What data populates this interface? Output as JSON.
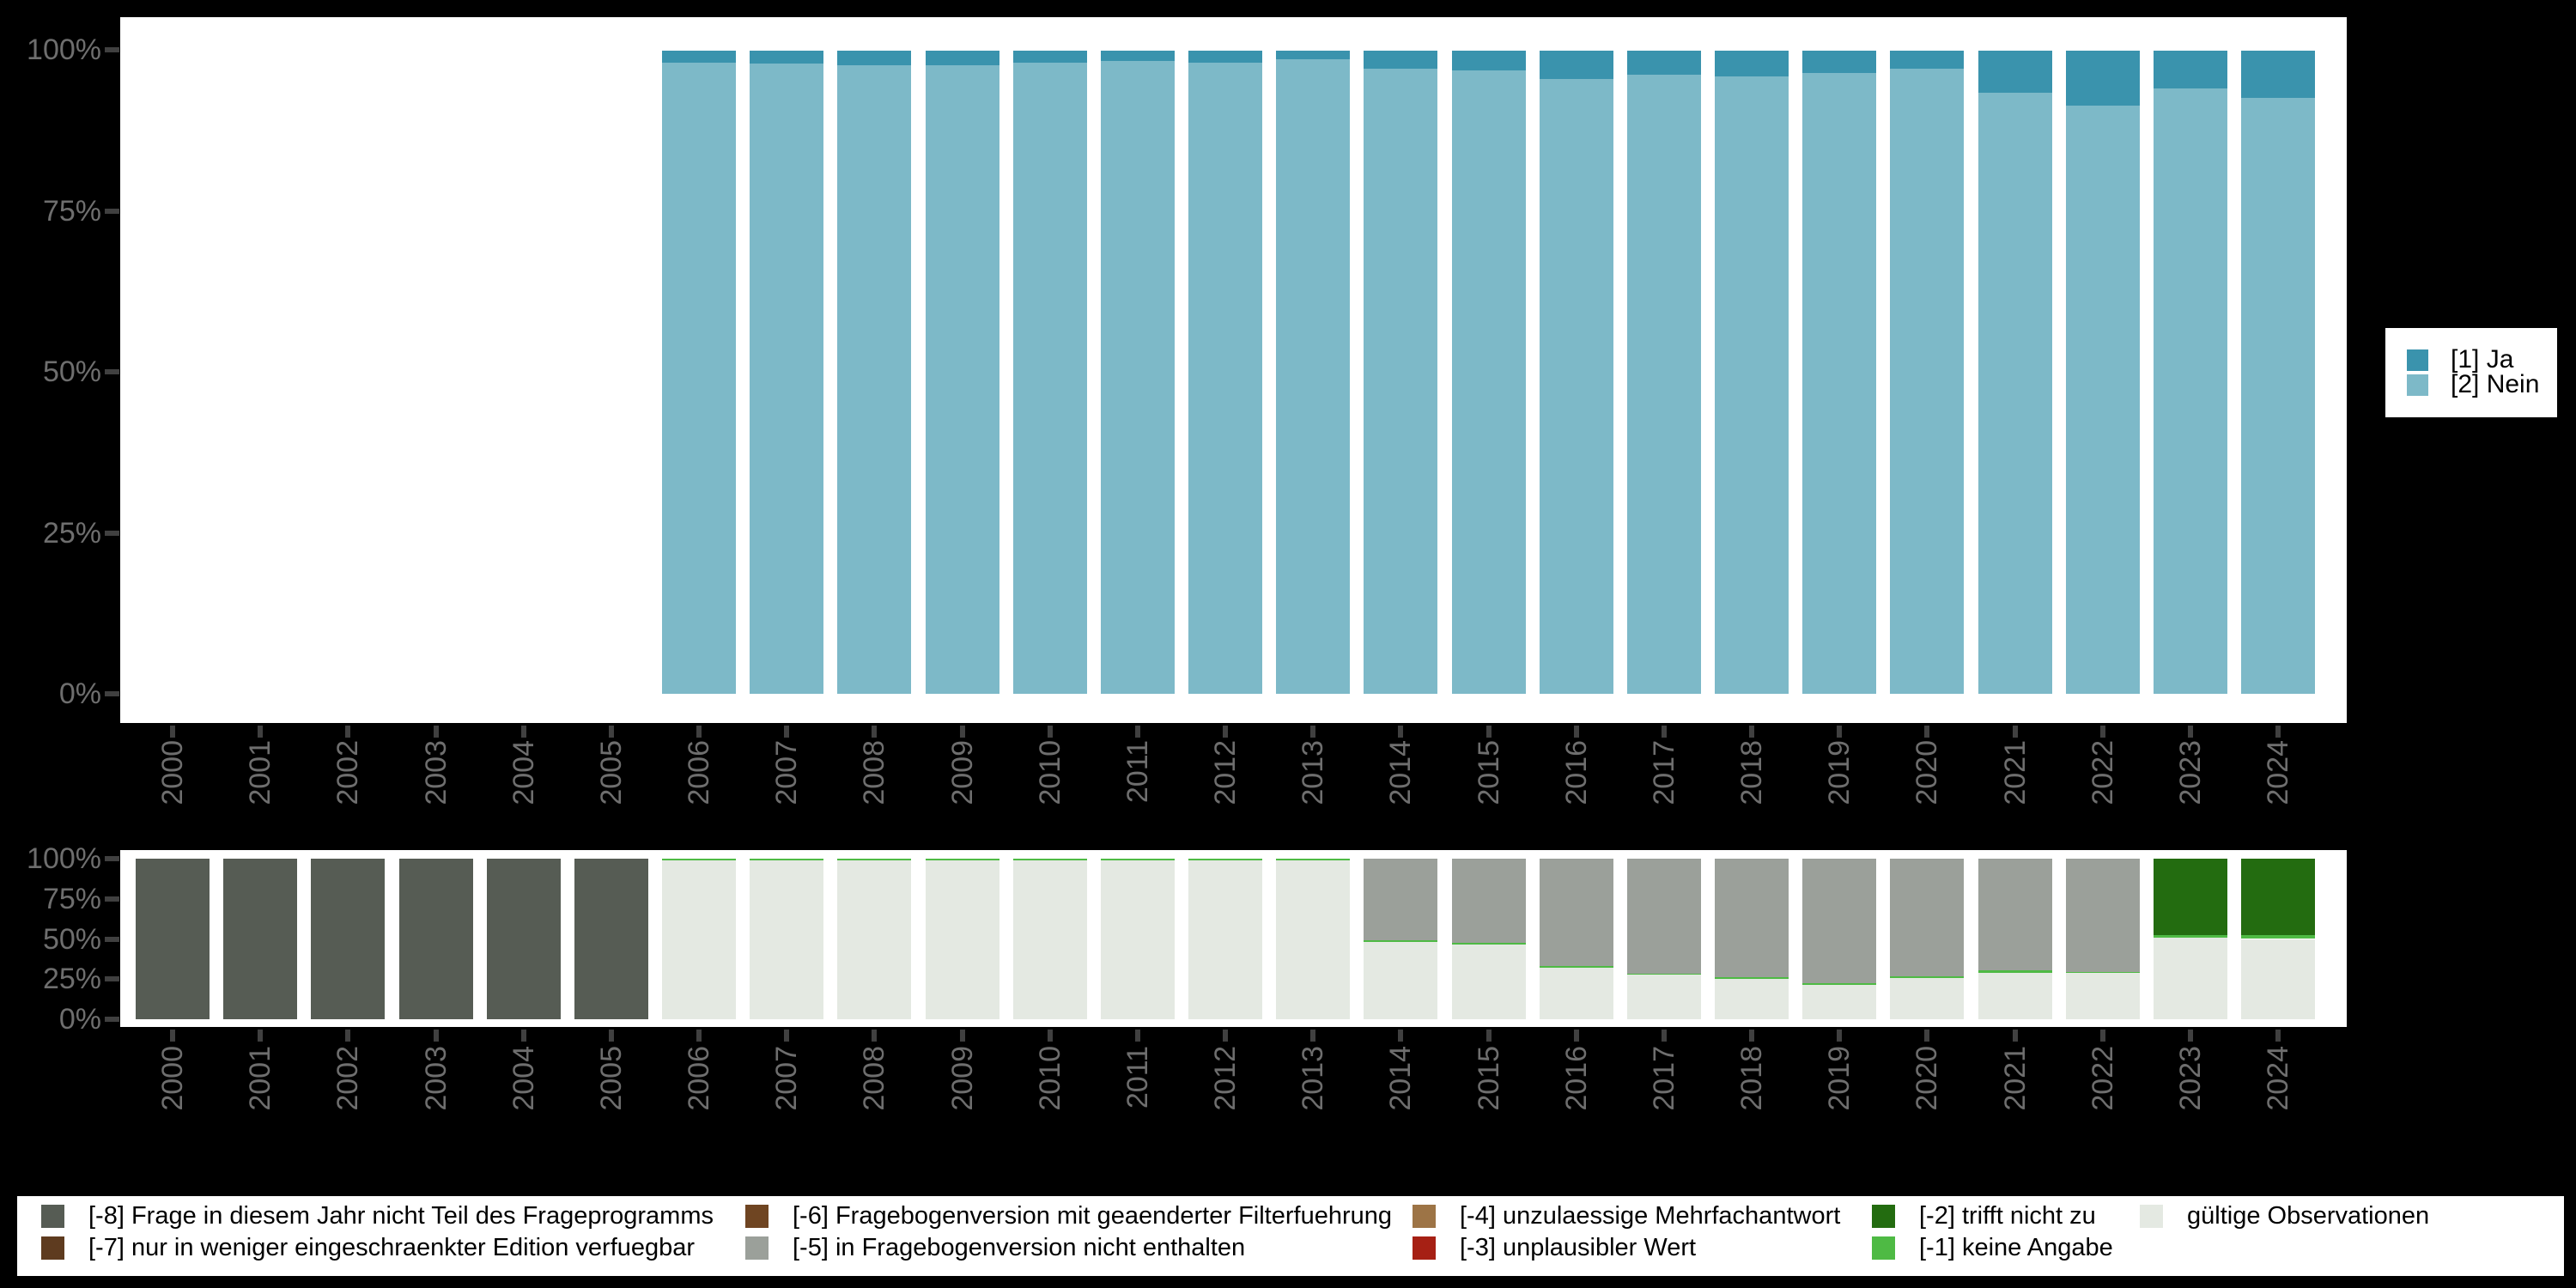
{
  "ui": {
    "y_axis_ticks": [
      "100%",
      "75%",
      "50%",
      "25%",
      "0%"
    ],
    "years": [
      "2000",
      "2001",
      "2002",
      "2003",
      "2004",
      "2005",
      "2006",
      "2007",
      "2008",
      "2009",
      "2010",
      "2011",
      "2012",
      "2013",
      "2014",
      "2015",
      "2016",
      "2017",
      "2018",
      "2019",
      "2020",
      "2021",
      "2022",
      "2023",
      "2024"
    ],
    "legend_top": {
      "items": [
        {
          "label": "[1] Ja",
          "color": "#3a93ad"
        },
        {
          "label": "[2] Nein",
          "color": "#7db9c8"
        }
      ]
    },
    "legend_bottom": {
      "items": [
        {
          "label": "[-8] Frage in diesem Jahr nicht Teil des Frageprogramms",
          "color": "#565c54"
        },
        {
          "label": "[-7] nur in weniger eingeschraenkter Edition verfuegbar",
          "color": "#5e3b1f"
        },
        {
          "label": "[-6] Fragebogenversion mit geaenderter Filterfuehrung",
          "color": "#6f4522"
        },
        {
          "label": "[-5] in Fragebogenversion nicht enthalten",
          "color": "#9ba09a"
        },
        {
          "label": "[-4] unzulaessige Mehrfachantwort",
          "color": "#9d7446"
        },
        {
          "label": "[-3] unplausibler Wert",
          "color": "#a62014"
        },
        {
          "label": "[-2] trifft nicht zu",
          "color": "#236c10"
        },
        {
          "label": "[-1] keine Angabe",
          "color": "#4eba44"
        },
        {
          "label": "gültige Observationen",
          "color": "#e4e9e2"
        }
      ]
    }
  },
  "chart_data": [
    {
      "type": "bar",
      "stacked": true,
      "title": "",
      "xlabel": "",
      "ylabel": "",
      "x": [
        "2000",
        "2001",
        "2002",
        "2003",
        "2004",
        "2005",
        "2006",
        "2007",
        "2008",
        "2009",
        "2010",
        "2011",
        "2012",
        "2013",
        "2014",
        "2015",
        "2016",
        "2017",
        "2018",
        "2019",
        "2020",
        "2021",
        "2022",
        "2023",
        "2024"
      ],
      "y_ticks": [
        "100%",
        "75%",
        "50%",
        "25%",
        "0%"
      ],
      "ylim": [
        0,
        100
      ],
      "grid": false,
      "legend_position": "right",
      "series": [
        {
          "name": "[2] Nein",
          "color": "#7db9c8",
          "values": [
            0,
            0,
            0,
            0,
            0,
            0,
            98.2,
            98.0,
            97.8,
            97.8,
            98.1,
            98.4,
            98.2,
            98.7,
            97.2,
            97.0,
            95.6,
            96.3,
            96.0,
            96.6,
            97.2,
            93.4,
            91.5,
            94.1,
            92.6
          ]
        },
        {
          "name": "[1] Ja",
          "color": "#3a93ad",
          "values": [
            0,
            0,
            0,
            0,
            0,
            0,
            1.8,
            2.0,
            2.2,
            2.2,
            1.9,
            1.6,
            1.8,
            1.3,
            2.8,
            3.0,
            4.4,
            3.7,
            4.0,
            3.4,
            2.8,
            6.6,
            8.5,
            5.9,
            7.4
          ]
        }
      ]
    },
    {
      "type": "bar",
      "stacked": true,
      "title": "",
      "xlabel": "",
      "ylabel": "",
      "x": [
        "2000",
        "2001",
        "2002",
        "2003",
        "2004",
        "2005",
        "2006",
        "2007",
        "2008",
        "2009",
        "2010",
        "2011",
        "2012",
        "2013",
        "2014",
        "2015",
        "2016",
        "2017",
        "2018",
        "2019",
        "2020",
        "2021",
        "2022",
        "2023",
        "2024"
      ],
      "y_ticks": [
        "100%",
        "75%",
        "50%",
        "25%",
        "0%"
      ],
      "ylim": [
        0,
        100
      ],
      "grid": false,
      "legend_position": "bottom",
      "series": [
        {
          "name": "gültige Observationen",
          "color": "#e4e9e2",
          "values": [
            0,
            0,
            0,
            0,
            0,
            0,
            99.2,
            99.2,
            99.2,
            99.2,
            99.2,
            99.2,
            98.9,
            98.9,
            48.0,
            46.5,
            32.0,
            28.0,
            25.0,
            21.5,
            25.5,
            29.0,
            29.0,
            51.0,
            50.0
          ]
        },
        {
          "name": "[-1] keine Angabe",
          "color": "#4eba44",
          "values": [
            0,
            0,
            0,
            0,
            0,
            0,
            0.8,
            0.8,
            0.8,
            0.8,
            0.8,
            0.8,
            1.1,
            1.1,
            1.0,
            1.0,
            1.0,
            0.4,
            1.0,
            1.0,
            1.0,
            1.5,
            0.3,
            1.5,
            2.5
          ]
        },
        {
          "name": "[-5] in Fragebogenversion nicht enthalten",
          "color": "#9ba09a",
          "values": [
            0,
            0,
            0,
            0,
            0,
            0,
            0,
            0,
            0,
            0,
            0,
            0,
            0,
            0,
            51.0,
            52.5,
            67.0,
            71.6,
            74.0,
            77.5,
            73.5,
            69.5,
            70.7,
            0,
            0
          ]
        },
        {
          "name": "[-2] trifft nicht zu",
          "color": "#236c10",
          "values": [
            0,
            0,
            0,
            0,
            0,
            0,
            0,
            0,
            0,
            0,
            0,
            0,
            0,
            0,
            0,
            0,
            0,
            0,
            0,
            0,
            0,
            0,
            0,
            47.5,
            47.5
          ]
        },
        {
          "name": "[-8] Frage in diesem Jahr nicht Teil des Frageprogramms",
          "color": "#565c54",
          "values": [
            100,
            100,
            100,
            100,
            100,
            100,
            0,
            0,
            0,
            0,
            0,
            0,
            0,
            0,
            0,
            0,
            0,
            0,
            0,
            0,
            0,
            0,
            0,
            0,
            0
          ]
        }
      ]
    }
  ]
}
